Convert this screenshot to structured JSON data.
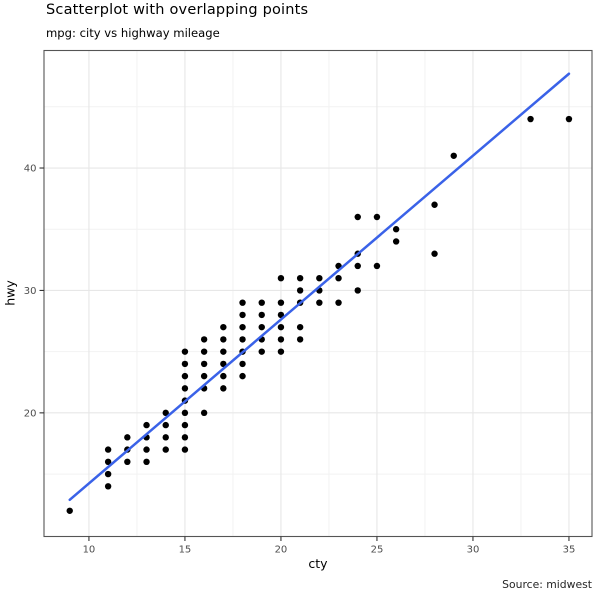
{
  "header": {
    "title": "Scatterplot with overlapping points",
    "subtitle": "mpg: city vs highway mileage"
  },
  "chart_data": {
    "type": "scatter",
    "title": "Scatterplot with overlapping points",
    "subtitle": "mpg: city vs highway mileage",
    "caption": "Source: midwest",
    "xlabel": "cty",
    "ylabel": "hwy",
    "xlim": [
      7.66,
      36.2
    ],
    "ylim": [
      9.9,
      49.6
    ],
    "x_major_ticks": [
      10,
      15,
      20,
      25,
      30,
      35
    ],
    "x_minor_ticks": [
      12.5,
      17.5,
      22.5,
      27.5,
      32.5
    ],
    "y_major_ticks": [
      20,
      30,
      40
    ],
    "y_minor_ticks": [
      15,
      25,
      35,
      45
    ],
    "grid": true,
    "legend_position": "none",
    "point_color": "#000000",
    "point_radius": 3.2,
    "trend_line": {
      "type": "linear",
      "color": "#3A62E8",
      "width": 2.5,
      "x_start": 9,
      "y_start": 12.9,
      "x_end": 35,
      "y_end": 47.7
    },
    "points": [
      [
        9,
        12
      ],
      [
        11,
        14
      ],
      [
        11,
        15
      ],
      [
        11,
        16
      ],
      [
        11,
        17
      ],
      [
        12,
        16
      ],
      [
        12,
        17
      ],
      [
        12,
        18
      ],
      [
        13,
        16
      ],
      [
        13,
        17
      ],
      [
        13,
        18
      ],
      [
        13,
        19
      ],
      [
        14,
        17
      ],
      [
        14,
        18
      ],
      [
        14,
        19
      ],
      [
        14,
        20
      ],
      [
        15,
        17
      ],
      [
        15,
        18
      ],
      [
        15,
        19
      ],
      [
        15,
        20
      ],
      [
        15,
        21
      ],
      [
        15,
        22
      ],
      [
        15,
        23
      ],
      [
        15,
        24
      ],
      [
        15,
        25
      ],
      [
        16,
        20
      ],
      [
        16,
        22
      ],
      [
        16,
        23
      ],
      [
        16,
        24
      ],
      [
        16,
        25
      ],
      [
        16,
        26
      ],
      [
        17,
        22
      ],
      [
        17,
        23
      ],
      [
        17,
        24
      ],
      [
        17,
        25
      ],
      [
        17,
        26
      ],
      [
        17,
        27
      ],
      [
        18,
        23
      ],
      [
        18,
        24
      ],
      [
        18,
        25
      ],
      [
        18,
        26
      ],
      [
        18,
        27
      ],
      [
        18,
        28
      ],
      [
        18,
        29
      ],
      [
        19,
        25
      ],
      [
        19,
        26
      ],
      [
        19,
        27
      ],
      [
        19,
        28
      ],
      [
        19,
        29
      ],
      [
        20,
        25
      ],
      [
        20,
        26
      ],
      [
        20,
        27
      ],
      [
        20,
        28
      ],
      [
        20,
        29
      ],
      [
        20,
        31
      ],
      [
        21,
        26
      ],
      [
        21,
        27
      ],
      [
        21,
        29
      ],
      [
        21,
        30
      ],
      [
        21,
        31
      ],
      [
        22,
        29
      ],
      [
        22,
        30
      ],
      [
        22,
        31
      ],
      [
        23,
        29
      ],
      [
        23,
        31
      ],
      [
        23,
        32
      ],
      [
        24,
        30
      ],
      [
        24,
        32
      ],
      [
        24,
        33
      ],
      [
        24,
        36
      ],
      [
        25,
        32
      ],
      [
        25,
        36
      ],
      [
        26,
        34
      ],
      [
        26,
        35
      ],
      [
        28,
        33
      ],
      [
        28,
        37
      ],
      [
        29,
        41
      ],
      [
        33,
        44
      ],
      [
        35,
        44
      ]
    ],
    "theme": {
      "background": "#FFFFFF",
      "panel_background": "#FFFFFF",
      "panel_border": "#555555",
      "grid_major": "#E7E7E7",
      "grid_minor": "#F2F2F2",
      "tick_color": "#333333",
      "tick_label_color": "#4D4D4D"
    }
  }
}
